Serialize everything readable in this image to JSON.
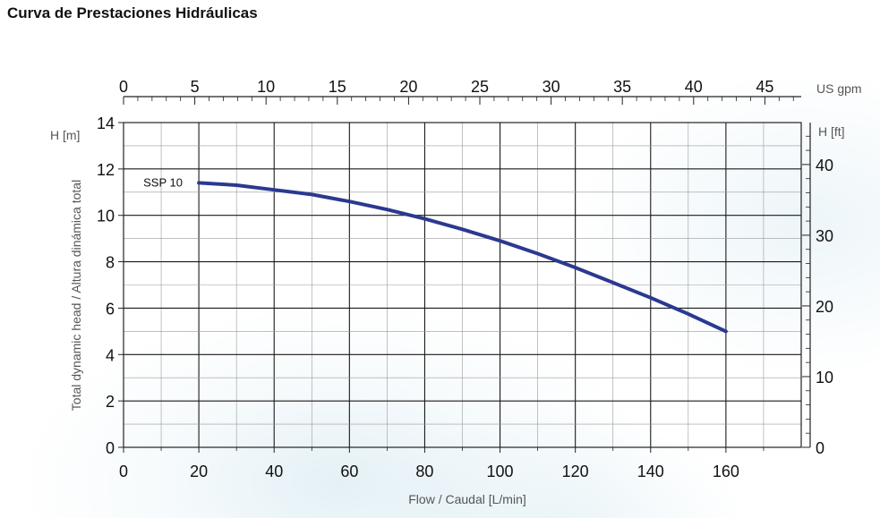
{
  "page_title": "Curva de Prestaciones Hidráulicas",
  "chart_data": {
    "type": "line",
    "title": "",
    "xlabel": "Flow / Caudal [L/min]",
    "ylabel": "Total dynamic head / Altura dinámica total",
    "y_unit_label": "H [m]",
    "y2_unit_label": "H [ft]",
    "x2_unit_label": "US gpm",
    "xlim": [
      0,
      180
    ],
    "ylim": [
      0,
      14
    ],
    "x_ticks": [
      "0",
      "20",
      "40",
      "60",
      "80",
      "100",
      "120",
      "140",
      "160"
    ],
    "y_ticks": [
      "0",
      "2",
      "4",
      "6",
      "8",
      "10",
      "12",
      "14"
    ],
    "x2_ticks": [
      "0",
      "5",
      "10",
      "15",
      "20",
      "25",
      "30",
      "35",
      "40",
      "45"
    ],
    "y2_ticks": [
      "0",
      "10",
      "20",
      "30",
      "40"
    ],
    "grid": true,
    "series": [
      {
        "name": "SSP 10",
        "color": "#2b3990",
        "x": [
          20,
          30,
          40,
          50,
          60,
          70,
          80,
          90,
          100,
          110,
          120,
          130,
          140,
          150,
          160
        ],
        "y": [
          11.4,
          11.3,
          11.1,
          10.9,
          10.6,
          10.25,
          9.85,
          9.4,
          8.9,
          8.35,
          7.75,
          7.1,
          6.45,
          5.75,
          5.0
        ]
      }
    ]
  }
}
